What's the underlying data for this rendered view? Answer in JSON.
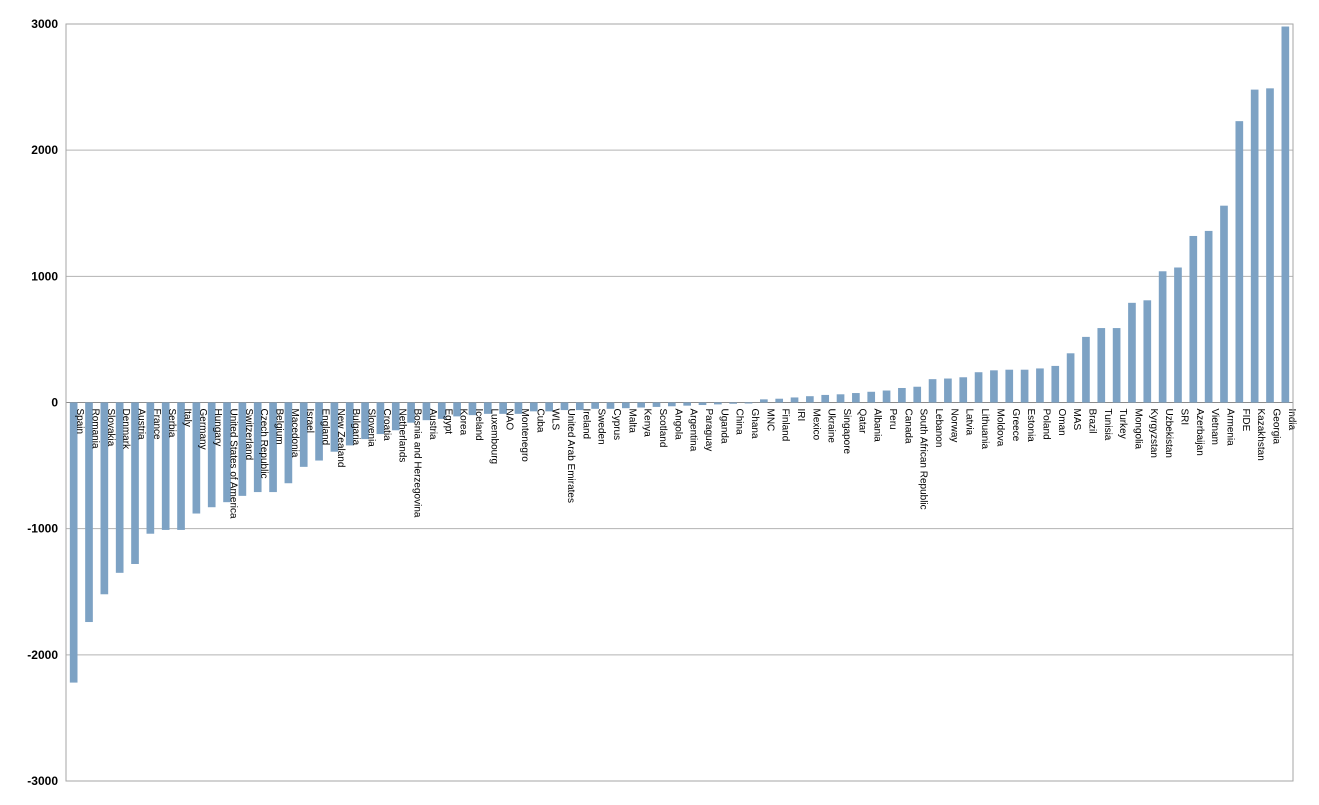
{
  "chart_data": {
    "type": "bar",
    "title": "",
    "xlabel": "",
    "ylabel": "",
    "ylim": [
      -3000,
      3000
    ],
    "yticks": [
      3000,
      2000,
      1000,
      0,
      -1000,
      -2000,
      -3000
    ],
    "grid": true,
    "legend": "none",
    "bar_color": "#7da2c4",
    "grid_color": "#b3b3b3",
    "categories": [
      "Spain",
      "Romania",
      "Slovakia",
      "Denmark",
      "Austria",
      "France",
      "Serbia",
      "Italy",
      "Germany",
      "Hungary",
      "United States of America",
      "Switzerland",
      "Czech Republic",
      "Belgium",
      "Macedonia",
      "Israel",
      "England",
      "New Zealand",
      "Bulgaria",
      "Slovenia",
      "Croatia",
      "Netherlands",
      "Bosnia and Herzegovina",
      "Austria",
      "Egypt",
      "Korea",
      "Iceland",
      "Luxembourg",
      "NAO",
      "Montenegro",
      "Cuba",
      "WLS",
      "United Arab Emirates",
      "Ireland",
      "Sweden",
      "Cyprus",
      "Malta",
      "Kenya",
      "Scotland",
      "Angola",
      "Argentina",
      "Paraguay",
      "Uganda",
      "China",
      "Ghana",
      "MNC",
      "Finland",
      "IRI",
      "Mexico",
      "Ukraine",
      "Singapore",
      "Qatar",
      "Albania",
      "Peru",
      "Canada",
      "South African Republic",
      "Lebanon",
      "Norway",
      "Latvia",
      "Lithuania",
      "Moldova",
      "Greece",
      "Estonia",
      "Poland",
      "Oman",
      "MAS",
      "Brazil",
      "Tunisia",
      "Turkey",
      "Mongolia",
      "Kyrgyzstan",
      "Uzbekistan",
      "SRI",
      "Azerbaijan",
      "Vietnam",
      "Armenia",
      "FIDE",
      "Kazakhstan",
      "Georgia",
      "India"
    ],
    "values": [
      -2220,
      -1740,
      -1520,
      -1350,
      -1280,
      -1040,
      -1010,
      -1010,
      -880,
      -830,
      -790,
      -740,
      -710,
      -710,
      -640,
      -510,
      -460,
      -390,
      -340,
      -290,
      -250,
      -220,
      -160,
      -140,
      -130,
      -110,
      -100,
      -90,
      -90,
      -90,
      -70,
      -70,
      -60,
      -60,
      -50,
      -50,
      -45,
      -40,
      -35,
      -30,
      -25,
      -20,
      -15,
      -10,
      -5,
      25,
      30,
      40,
      50,
      60,
      65,
      75,
      85,
      95,
      115,
      125,
      185,
      190,
      200,
      240,
      255,
      260,
      260,
      270,
      290,
      390,
      520,
      590,
      590,
      790,
      810,
      1040,
      1070,
      1320,
      1360,
      1560,
      2230,
      2480,
      2490,
      2980
    ]
  }
}
